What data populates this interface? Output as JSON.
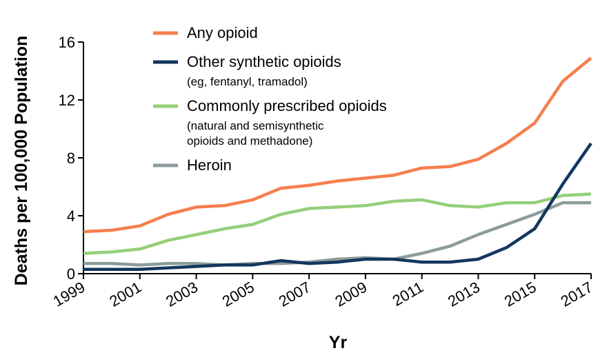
{
  "chart_data": {
    "type": "line",
    "title": "",
    "xlabel": "Yr",
    "ylabel": "Deaths per 100,000 Population",
    "xlim": [
      1999,
      2017
    ],
    "ylim": [
      0,
      16
    ],
    "x_ticks": [
      "1999",
      "2001",
      "2003",
      "2005",
      "2007",
      "2009",
      "2011",
      "2013",
      "2015",
      "2017"
    ],
    "y_ticks": [
      "0",
      "4",
      "8",
      "12",
      "16"
    ],
    "grid": false,
    "legend_position": "top-left",
    "x": [
      1999,
      2000,
      2001,
      2002,
      2003,
      2004,
      2005,
      2006,
      2007,
      2008,
      2009,
      2010,
      2011,
      2012,
      2013,
      2014,
      2015,
      2016,
      2017
    ],
    "series": [
      {
        "name": "Any opioid",
        "note": [],
        "color": "#f57f4d",
        "values": [
          2.9,
          3.0,
          3.3,
          4.1,
          4.6,
          4.7,
          5.1,
          5.9,
          6.1,
          6.4,
          6.6,
          6.8,
          7.3,
          7.4,
          7.9,
          9.0,
          10.4,
          13.3,
          14.9
        ]
      },
      {
        "name": "Other synthetic opioids",
        "note": [
          "(eg, fentanyl, tramadol)"
        ],
        "color": "#13365e",
        "values": [
          0.3,
          0.3,
          0.3,
          0.4,
          0.5,
          0.6,
          0.6,
          0.9,
          0.7,
          0.8,
          1.0,
          1.0,
          0.8,
          0.8,
          1.0,
          1.8,
          3.1,
          6.2,
          9.0
        ]
      },
      {
        "name": "Commonly prescribed opioids",
        "note": [
          "(natural and semisynthetic",
          "opioids and methadone)"
        ],
        "color": "#94cf7a",
        "values": [
          1.4,
          1.5,
          1.7,
          2.3,
          2.7,
          3.1,
          3.4,
          4.1,
          4.5,
          4.6,
          4.7,
          5.0,
          5.1,
          4.7,
          4.6,
          4.9,
          4.9,
          5.4,
          5.5
        ]
      },
      {
        "name": "Heroin",
        "note": [],
        "color": "#8c9c9c",
        "values": [
          0.7,
          0.7,
          0.6,
          0.7,
          0.7,
          0.6,
          0.7,
          0.7,
          0.8,
          1.0,
          1.1,
          1.0,
          1.4,
          1.9,
          2.7,
          3.4,
          4.1,
          4.9,
          4.9
        ]
      }
    ]
  }
}
